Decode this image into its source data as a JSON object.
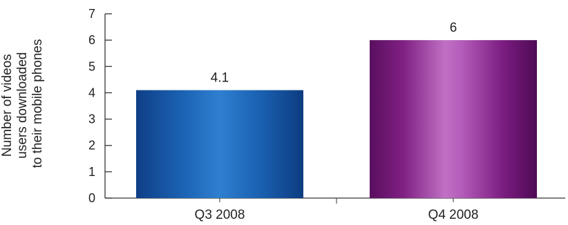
{
  "chart_data": {
    "type": "bar",
    "categories": [
      "Q3 2008",
      "Q4 2008"
    ],
    "values": [
      4.1,
      6
    ],
    "value_labels": [
      "4.1",
      "6"
    ],
    "title": "",
    "xlabel": "",
    "ylabel_lines": [
      "Number of videos",
      "users downloaded",
      "to their mobile phones"
    ],
    "ylim": [
      0,
      7
    ],
    "yticks": [
      0,
      1,
      2,
      3,
      4,
      5,
      6,
      7
    ],
    "grid": false,
    "colors": {
      "Q3 2008": "#1f5aa6",
      "Q4 2008": "#8e2a8c"
    }
  }
}
